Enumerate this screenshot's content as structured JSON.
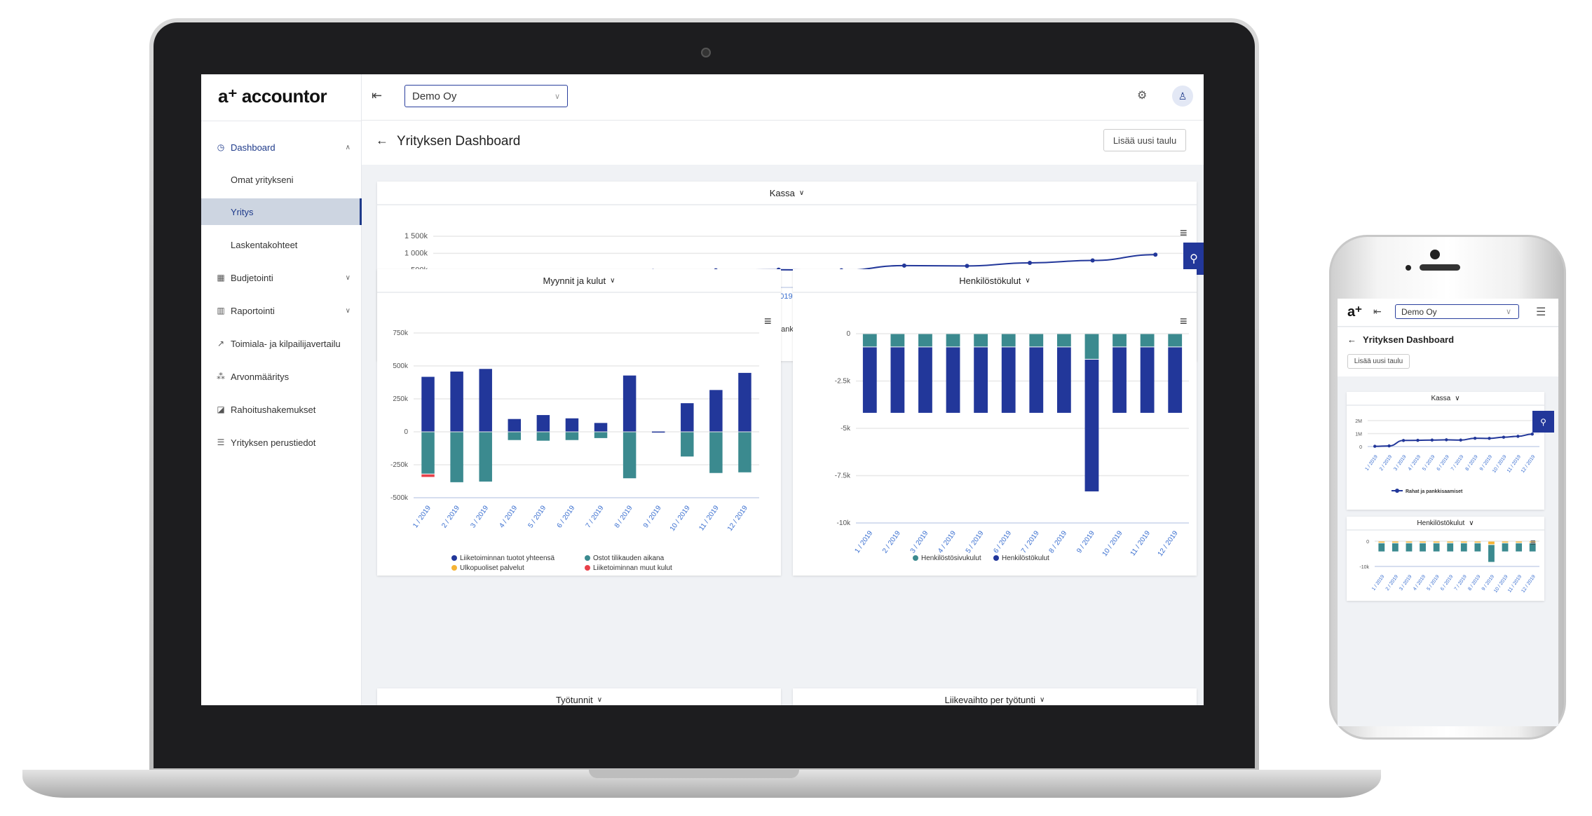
{
  "app": {
    "logo": "a⁺ accountor",
    "logo_short": "a⁺",
    "company_select": "Demo Oy",
    "page_title": "Yrityksen Dashboard",
    "add_board_button": "Lisää uusi taulu"
  },
  "sidebar": {
    "items": [
      {
        "label": "Dashboard",
        "icon": "gauge-icon",
        "expanded": true,
        "active_section": true
      },
      {
        "label": "Omat yritykseni",
        "sub": true
      },
      {
        "label": "Yritys",
        "sub": true,
        "selected": true
      },
      {
        "label": "Laskentakohteet",
        "sub": true
      },
      {
        "label": "Budjetointi",
        "icon": "calculator-icon",
        "expandable": true
      },
      {
        "label": "Raportointi",
        "icon": "bar-chart-icon",
        "expandable": true
      },
      {
        "label": "Toimiala- ja kilpailijavertailu",
        "icon": "trend-icon"
      },
      {
        "label": "Arvonmääritys",
        "icon": "hierarchy-icon"
      },
      {
        "label": "Rahoitushakemukset",
        "icon": "chart-box-icon"
      },
      {
        "label": "Yrityksen perustiedot",
        "icon": "document-icon"
      }
    ]
  },
  "cards": {
    "kassa": "Kassa",
    "myynnit": "Myynnit ja kulut",
    "henkilosto": "Henkilöstökulut",
    "tyotunnit": "Työtunnit",
    "liikevaihto": "Liikevaihto per työtunti"
  },
  "colors": {
    "navy": "#22379a",
    "teal": "#3b8a8f",
    "orange": "#f5b335",
    "red": "#e8414a",
    "accent": "#1e3a8a"
  },
  "chart_data": [
    {
      "id": "kassa",
      "type": "line",
      "title": "Kassa",
      "categories": [
        "1 / 2019",
        "2 / 2019",
        "3 / 2019",
        "4 / 2019",
        "5 / 2019",
        "6 / 2019",
        "7 / 2019",
        "8 / 2019",
        "9 / 2019",
        "10 / 2019",
        "11 / 2019",
        "12 / 2019"
      ],
      "ylim": [
        0,
        1500000
      ],
      "yticks": [
        {
          "v": 0,
          "label": "0"
        },
        {
          "v": 500000,
          "label": "500k"
        },
        {
          "v": 1000000,
          "label": "1 000k"
        },
        {
          "v": 1500000,
          "label": "1 500k"
        }
      ],
      "series": [
        {
          "name": "Rahat ja pankkisaamiset",
          "color": "#22379a",
          "values": [
            20000,
            50000,
            470000,
            480000,
            500000,
            520000,
            500000,
            640000,
            630000,
            720000,
            790000,
            960000
          ]
        }
      ],
      "legend": "bottom"
    },
    {
      "id": "myynnit",
      "type": "bar",
      "stacked": true,
      "title": "Myynnit ja kulut",
      "categories": [
        "1 / 2019",
        "2 / 2019",
        "3 / 2019",
        "4 / 2019",
        "5 / 2019",
        "6 / 2019",
        "7 / 2019",
        "8 / 2019",
        "9 / 2019",
        "10 / 2019",
        "11 / 2019",
        "12 / 2019"
      ],
      "ylim": [
        -500000,
        750000
      ],
      "yticks": [
        {
          "v": -500000,
          "label": "-500k"
        },
        {
          "v": -250000,
          "label": "-250k"
        },
        {
          "v": 0,
          "label": "0"
        },
        {
          "v": 250000,
          "label": "250k"
        },
        {
          "v": 500000,
          "label": "500k"
        },
        {
          "v": 750000,
          "label": "750k"
        }
      ],
      "series": [
        {
          "name": "Liiketoiminnan tuotot yhteensä",
          "color": "#22379a",
          "values": [
            420000,
            460000,
            480000,
            100000,
            130000,
            105000,
            70000,
            430000,
            5000,
            220000,
            320000,
            450000
          ]
        },
        {
          "name": "Ostot tilikauden aikana",
          "color": "#3b8a8f",
          "values": [
            -320000,
            -385000,
            -380000,
            -65000,
            -70000,
            -65000,
            -50000,
            -355000,
            0,
            -190000,
            -315000,
            -310000
          ]
        },
        {
          "name": "Ulkopuoliset palvelut",
          "color": "#f5b335",
          "values": [
            0,
            0,
            0,
            0,
            0,
            0,
            0,
            0,
            0,
            0,
            0,
            0
          ]
        },
        {
          "name": "Liiketoiminnan muut kulut",
          "color": "#e8414a",
          "values": [
            -25000,
            0,
            0,
            0,
            0,
            0,
            0,
            0,
            0,
            0,
            0,
            0
          ]
        }
      ],
      "legend": "bottom"
    },
    {
      "id": "henkilosto",
      "type": "bar",
      "stacked": true,
      "title": "Henkilöstökulut",
      "categories": [
        "1 / 2019",
        "2 / 2019",
        "3 / 2019",
        "4 / 2019",
        "5 / 2019",
        "6 / 2019",
        "7 / 2019",
        "8 / 2019",
        "9 / 2019",
        "10 / 2019",
        "11 / 2019",
        "12 / 2019"
      ],
      "ylim": [
        -10000,
        0
      ],
      "yticks": [
        {
          "v": -10000,
          "label": "-10k"
        },
        {
          "v": -7500,
          "label": "-7.5k"
        },
        {
          "v": -5000,
          "label": "-5k"
        },
        {
          "v": -2500,
          "label": "-2.5k"
        },
        {
          "v": 0,
          "label": "0"
        }
      ],
      "series": [
        {
          "name": "Henkilöstösivukulut",
          "color": "#3b8a8f",
          "values": [
            -700,
            -700,
            -700,
            -700,
            -700,
            -700,
            -700,
            -700,
            -1350,
            -700,
            -700,
            -700
          ]
        },
        {
          "name": "Henkilöstökulut",
          "color": "#22379a",
          "values": [
            -3500,
            -3500,
            -3500,
            -3500,
            -3500,
            -3500,
            -3500,
            -3500,
            -7000,
            -3500,
            -3500,
            -3500
          ]
        }
      ],
      "legend": "bottom"
    },
    {
      "id": "phone-kassa",
      "type": "line",
      "title": "Kassa",
      "categories": [
        "1 / 2019",
        "2 / 2019",
        "3 / 2019",
        "4 / 2019",
        "5 / 2019",
        "6 / 2019",
        "7 / 2019",
        "8 / 2019",
        "9 / 2019",
        "10 / 2019",
        "11 / 2019",
        "12 / 2019"
      ],
      "ylim": [
        0,
        2000000
      ],
      "yticks": [
        {
          "v": 0,
          "label": "0"
        },
        {
          "v": 1000000,
          "label": "1M"
        },
        {
          "v": 2000000,
          "label": "2M"
        }
      ],
      "series": [
        {
          "name": "Rahat ja pankkisaamiset",
          "color": "#22379a",
          "values": [
            20000,
            50000,
            470000,
            480000,
            500000,
            520000,
            500000,
            640000,
            630000,
            720000,
            790000,
            960000
          ]
        }
      ],
      "legend": "bottom"
    },
    {
      "id": "phone-henkilosto",
      "type": "bar",
      "stacked": true,
      "title": "Henkilöstökulut",
      "categories": [
        "1 / 2019",
        "2 / 2019",
        "3 / 2019",
        "4 / 2019",
        "5 / 2019",
        "6 / 2019",
        "7 / 2019",
        "8 / 2019",
        "9 / 2019",
        "10 / 2019",
        "11 / 2019",
        "12 / 2019"
      ],
      "ylim": [
        -10000,
        0
      ],
      "yticks": [
        {
          "v": -10000,
          "label": "-10k"
        },
        {
          "v": 0,
          "label": "0"
        }
      ],
      "series": [
        {
          "name": "",
          "color": "#f5b335",
          "values": [
            -700,
            -700,
            -700,
            -700,
            -700,
            -700,
            -700,
            -700,
            -1350,
            -700,
            -700,
            -700
          ]
        },
        {
          "name": "",
          "color": "#3b8a8f",
          "values": [
            -3500,
            -3500,
            -3500,
            -3500,
            -3500,
            -3500,
            -3500,
            -3500,
            -7000,
            -3500,
            -3500,
            -3500
          ]
        }
      ]
    }
  ]
}
